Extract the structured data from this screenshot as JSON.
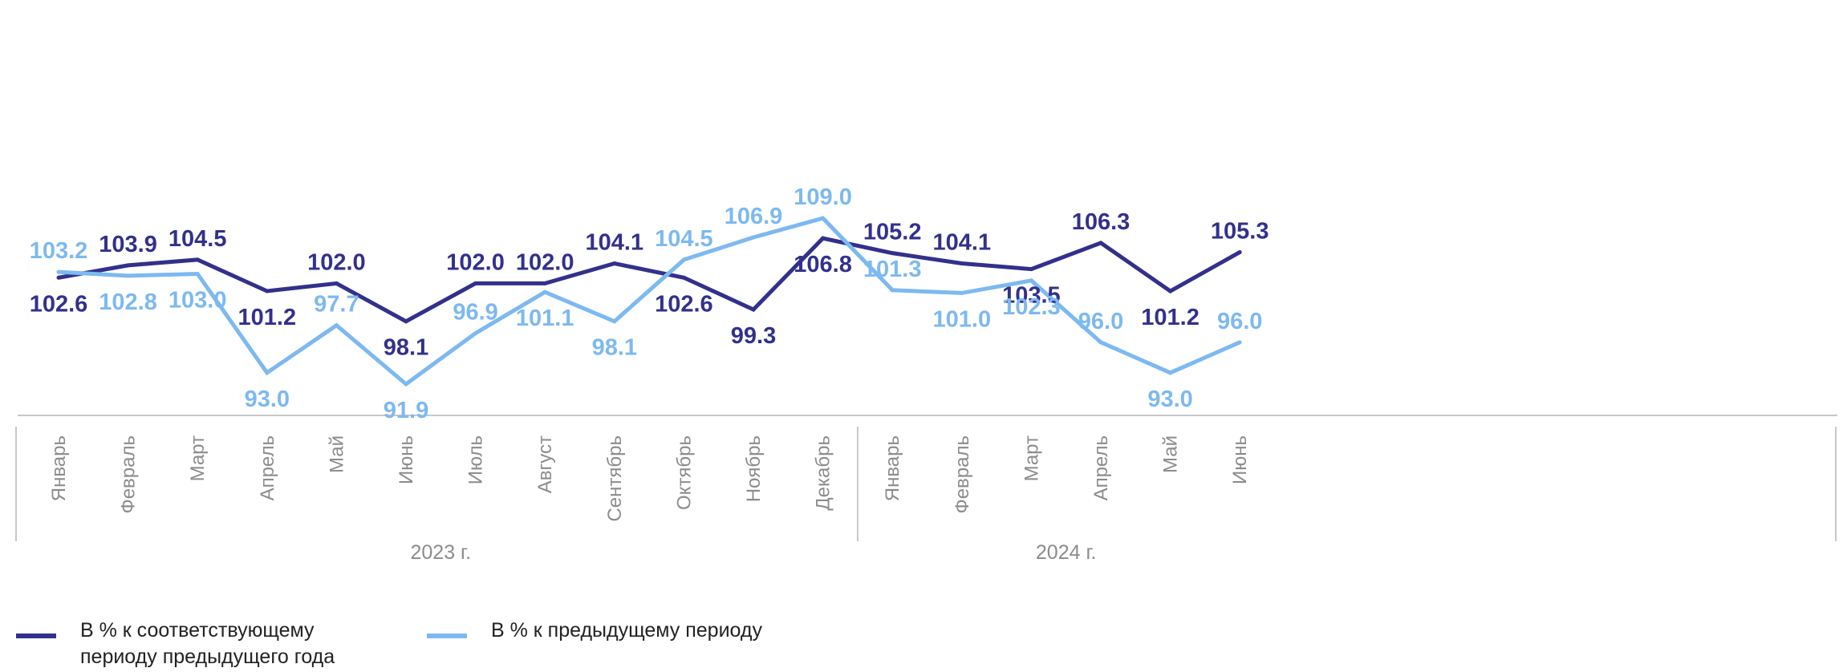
{
  "chart_data": {
    "type": "line",
    "categories": [
      "Январь",
      "Февраль",
      "Март",
      "Апрель",
      "Май",
      "Июнь",
      "Июль",
      "Август",
      "Сентябрь",
      "Октябрь",
      "Ноябрь",
      "Декабрь",
      "Январь",
      "Февраль",
      "Март",
      "Апрель",
      "Май",
      "Июнь"
    ],
    "groups": [
      {
        "label": "2023 г.",
        "from": 0,
        "to": 11
      },
      {
        "label": "2024 г.",
        "from": 12,
        "to": 17
      }
    ],
    "series": [
      {
        "name": "В % к соответствующему периоду предыдущего года",
        "color": "#33308c",
        "values": [
          102.6,
          103.9,
          104.5,
          101.2,
          102.0,
          98.1,
          102.0,
          102.0,
          104.1,
          102.6,
          99.3,
          106.8,
          105.2,
          104.1,
          103.5,
          106.3,
          101.2,
          105.3
        ]
      },
      {
        "name": "В % к предыдущему периоду",
        "color": "#7db9f0",
        "values": [
          103.2,
          102.8,
          103.0,
          93.0,
          97.7,
          91.9,
          96.9,
          101.1,
          98.1,
          104.5,
          106.9,
          109.0,
          101.3,
          101.0,
          102.3,
          96.0,
          93.0,
          96.0
        ]
      }
    ],
    "legend_position": "bottom-left",
    "grid": false
  }
}
